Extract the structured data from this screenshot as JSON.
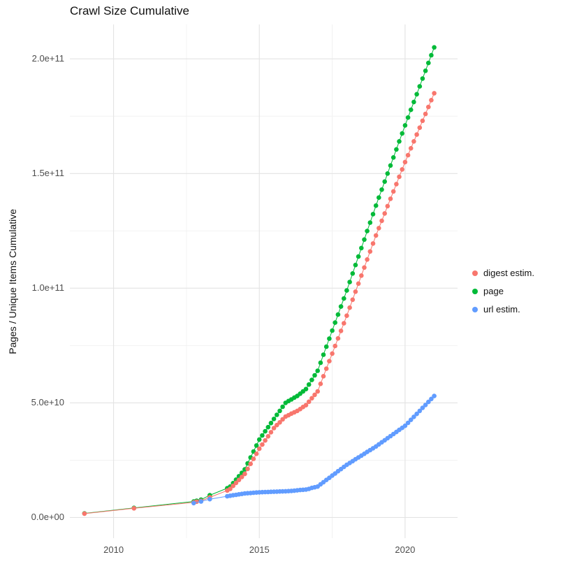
{
  "chart_data": {
    "type": "scatter",
    "title": "Crawl Size Cumulative",
    "xlabel": "",
    "ylabel": "Pages / Unique Items Cumulative",
    "grid": true,
    "legend_position": "right",
    "xlim": [
      2008.5,
      2021.8
    ],
    "ylim": [
      -9000000000.0,
      215000000000.0
    ],
    "x_ticks": [
      2010,
      2015,
      2020
    ],
    "x_tick_labels": [
      "2010",
      "2015",
      "2020"
    ],
    "x_minor_ticks": [
      2012.5,
      2017.5
    ],
    "y_ticks": [
      0,
      50000000000.0,
      100000000000.0,
      150000000000.0,
      200000000000.0
    ],
    "y_tick_labels": [
      "0.0e+00",
      "5.0e+10",
      "1.0e+11",
      "1.5e+11",
      "2.0e+11"
    ],
    "y_minor_ticks": [
      25000000000.0,
      75000000000.0,
      125000000000.0,
      175000000000.0
    ],
    "series": [
      {
        "name": "digest estim.",
        "color": "#F8766D",
        "points": [
          [
            2009,
            1700000000.0
          ],
          [
            2010.7,
            4000000000.0
          ],
          [
            2012.75,
            6600000000.0
          ],
          [
            2012.85,
            6900000000.0
          ],
          [
            2013,
            7300000000.0
          ],
          [
            2013.3,
            8800000000.0
          ],
          [
            2013.9,
            11800000000.0
          ],
          [
            2014,
            12500000000.0
          ],
          [
            2014.1,
            13800000000.0
          ],
          [
            2014.2,
            15100000000.0
          ],
          [
            2014.3,
            16400000000.0
          ],
          [
            2014.4,
            17700000000.0
          ],
          [
            2014.5,
            19000000000.0
          ],
          [
            2014.6,
            21200000000.0
          ],
          [
            2014.7,
            23400000000.0
          ],
          [
            2014.8,
            25600000000.0
          ],
          [
            2014.9,
            27800000000.0
          ],
          [
            2015,
            30000000000.0
          ],
          [
            2015.1,
            31800000000.0
          ],
          [
            2015.2,
            33600000000.0
          ],
          [
            2015.3,
            35400000000.0
          ],
          [
            2015.4,
            37200000000.0
          ],
          [
            2015.5,
            39000000000.0
          ],
          [
            2015.6,
            40300000000.0
          ],
          [
            2015.7,
            41500000000.0
          ],
          [
            2015.8,
            42800000000.0
          ],
          [
            2015.9,
            44000000000.0
          ],
          [
            2016,
            44600000000.0
          ],
          [
            2016.1,
            45300000000.0
          ],
          [
            2016.2,
            45900000000.0
          ],
          [
            2016.3,
            46500000000.0
          ],
          [
            2016.4,
            47300000000.0
          ],
          [
            2016.5,
            48200000000.0
          ],
          [
            2016.6,
            49000000000.0
          ],
          [
            2016.7,
            50500000000.0
          ],
          [
            2016.8,
            52000000000.0
          ],
          [
            2016.9,
            53500000000.0
          ],
          [
            2017,
            55000000000.0
          ],
          [
            2017.1,
            58300000000.0
          ],
          [
            2017.2,
            61600000000.0
          ],
          [
            2017.3,
            64900000000.0
          ],
          [
            2017.4,
            68200000000.0
          ],
          [
            2017.5,
            71500000000.0
          ],
          [
            2017.6,
            74800000000.0
          ],
          [
            2017.7,
            78100000000.0
          ],
          [
            2017.8,
            81400000000.0
          ],
          [
            2017.9,
            84700000000.0
          ],
          [
            2018,
            88000000000.0
          ],
          [
            2018.1,
            91500000000.0
          ],
          [
            2018.2,
            95000000000.0
          ],
          [
            2018.3,
            98500000000.0
          ],
          [
            2018.4,
            102000000000.0
          ],
          [
            2018.5,
            105500000000.0
          ],
          [
            2018.6,
            109000000000.0
          ],
          [
            2018.7,
            112500000000.0
          ],
          [
            2018.8,
            116000000000.0
          ],
          [
            2018.9,
            119500000000.0
          ],
          [
            2019,
            123000000000.0
          ],
          [
            2019.1,
            126200000000.0
          ],
          [
            2019.2,
            129400000000.0
          ],
          [
            2019.3,
            132600000000.0
          ],
          [
            2019.4,
            135800000000.0
          ],
          [
            2019.5,
            139000000000.0
          ],
          [
            2019.6,
            142200000000.0
          ],
          [
            2019.7,
            145400000000.0
          ],
          [
            2019.8,
            148600000000.0
          ],
          [
            2019.9,
            151800000000.0
          ],
          [
            2020,
            155000000000.0
          ],
          [
            2020.1,
            158000000000.0
          ],
          [
            2020.2,
            161000000000.0
          ],
          [
            2020.3,
            164000000000.0
          ],
          [
            2020.4,
            167000000000.0
          ],
          [
            2020.5,
            170000000000.0
          ],
          [
            2020.6,
            173000000000.0
          ],
          [
            2020.7,
            176000000000.0
          ],
          [
            2020.8,
            179000000000.0
          ],
          [
            2020.9,
            182000000000.0
          ],
          [
            2021,
            185000000000.0
          ]
        ]
      },
      {
        "name": "page",
        "color": "#00BA38",
        "points": [
          [
            2009,
            1800000000.0
          ],
          [
            2010.7,
            4200000000.0
          ],
          [
            2012.75,
            7000000000.0
          ],
          [
            2012.85,
            7300000000.0
          ],
          [
            2013,
            7800000000.0
          ],
          [
            2013.3,
            9700000000.0
          ],
          [
            2013.9,
            12800000000.0
          ],
          [
            2014,
            13500000000.0
          ],
          [
            2014.1,
            15000000000.0
          ],
          [
            2014.2,
            16500000000.0
          ],
          [
            2014.3,
            18000000000.0
          ],
          [
            2014.4,
            19500000000.0
          ],
          [
            2014.5,
            21000000000.0
          ],
          [
            2014.6,
            23600000000.0
          ],
          [
            2014.7,
            26200000000.0
          ],
          [
            2014.8,
            28800000000.0
          ],
          [
            2014.9,
            31400000000.0
          ],
          [
            2015,
            34000000000.0
          ],
          [
            2015.1,
            35800000000.0
          ],
          [
            2015.2,
            37600000000.0
          ],
          [
            2015.3,
            39400000000.0
          ],
          [
            2015.4,
            41200000000.0
          ],
          [
            2015.5,
            43000000000.0
          ],
          [
            2015.6,
            44800000000.0
          ],
          [
            2015.7,
            46500000000.0
          ],
          [
            2015.8,
            48300000000.0
          ],
          [
            2015.9,
            50000000000.0
          ],
          [
            2016,
            50800000000.0
          ],
          [
            2016.1,
            51500000000.0
          ],
          [
            2016.2,
            52300000000.0
          ],
          [
            2016.3,
            53000000000.0
          ],
          [
            2016.4,
            54000000000.0
          ],
          [
            2016.5,
            55000000000.0
          ],
          [
            2016.6,
            56000000000.0
          ],
          [
            2016.7,
            58000000000.0
          ],
          [
            2016.8,
            60000000000.0
          ],
          [
            2016.9,
            62000000000.0
          ],
          [
            2017,
            64000000000.0
          ],
          [
            2017.1,
            67500000000.0
          ],
          [
            2017.2,
            71000000000.0
          ],
          [
            2017.3,
            74500000000.0
          ],
          [
            2017.4,
            78000000000.0
          ],
          [
            2017.5,
            81500000000.0
          ],
          [
            2017.6,
            85000000000.0
          ],
          [
            2017.7,
            88500000000.0
          ],
          [
            2017.8,
            92000000000.0
          ],
          [
            2017.9,
            95500000000.0
          ],
          [
            2018,
            99000000000.0
          ],
          [
            2018.1,
            102700000000.0
          ],
          [
            2018.2,
            106400000000.0
          ],
          [
            2018.3,
            110100000000.0
          ],
          [
            2018.4,
            113800000000.0
          ],
          [
            2018.5,
            117500000000.0
          ],
          [
            2018.6,
            121200000000.0
          ],
          [
            2018.7,
            124900000000.0
          ],
          [
            2018.8,
            128600000000.0
          ],
          [
            2018.9,
            132300000000.0
          ],
          [
            2019,
            136000000000.0
          ],
          [
            2019.1,
            139500000000.0
          ],
          [
            2019.2,
            143000000000.0
          ],
          [
            2019.3,
            146500000000.0
          ],
          [
            2019.4,
            150000000000.0
          ],
          [
            2019.5,
            153500000000.0
          ],
          [
            2019.6,
            157000000000.0
          ],
          [
            2019.7,
            160500000000.0
          ],
          [
            2019.8,
            164000000000.0
          ],
          [
            2019.9,
            167500000000.0
          ],
          [
            2020,
            171000000000.0
          ],
          [
            2020.1,
            174400000000.0
          ],
          [
            2020.2,
            177800000000.0
          ],
          [
            2020.3,
            181200000000.0
          ],
          [
            2020.4,
            184600000000.0
          ],
          [
            2020.5,
            188000000000.0
          ],
          [
            2020.6,
            191400000000.0
          ],
          [
            2020.7,
            194800000000.0
          ],
          [
            2020.8,
            198200000000.0
          ],
          [
            2020.9,
            201600000000.0
          ],
          [
            2021,
            205000000000.0
          ]
        ]
      },
      {
        "name": "url estim.",
        "color": "#619CFF",
        "points": [
          [
            2012.75,
            6300000000.0
          ],
          [
            2013,
            7000000000.0
          ],
          [
            2013.3,
            8000000000.0
          ],
          [
            2013.9,
            9300000000.0
          ],
          [
            2014,
            9500000000.0
          ],
          [
            2014.1,
            9700000000.0
          ],
          [
            2014.2,
            9900000000.0
          ],
          [
            2014.3,
            10100000000.0
          ],
          [
            2014.4,
            10300000000.0
          ],
          [
            2014.5,
            10500000000.0
          ],
          [
            2014.6,
            10600000000.0
          ],
          [
            2014.7,
            10700000000.0
          ],
          [
            2014.8,
            10800000000.0
          ],
          [
            2014.9,
            10900000000.0
          ],
          [
            2015,
            11000000000.0
          ],
          [
            2015.1,
            11050000000.0
          ],
          [
            2015.2,
            11100000000.0
          ],
          [
            2015.3,
            11150000000.0
          ],
          [
            2015.4,
            11200000000.0
          ],
          [
            2015.5,
            11250000000.0
          ],
          [
            2015.6,
            11300000000.0
          ],
          [
            2015.7,
            11350000000.0
          ],
          [
            2015.8,
            11400000000.0
          ],
          [
            2015.9,
            11450000000.0
          ],
          [
            2016,
            11500000000.0
          ],
          [
            2016.1,
            11600000000.0
          ],
          [
            2016.2,
            11700000000.0
          ],
          [
            2016.3,
            11850000000.0
          ],
          [
            2016.4,
            12000000000.0
          ],
          [
            2016.5,
            12100000000.0
          ],
          [
            2016.6,
            12200000000.0
          ],
          [
            2016.7,
            12500000000.0
          ],
          [
            2016.8,
            12900000000.0
          ],
          [
            2016.9,
            13200000000.0
          ],
          [
            2017,
            13500000000.0
          ],
          [
            2017.1,
            14500000000.0
          ],
          [
            2017.2,
            15400000000.0
          ],
          [
            2017.3,
            16400000000.0
          ],
          [
            2017.4,
            17300000000.0
          ],
          [
            2017.5,
            18300000000.0
          ],
          [
            2017.6,
            19200000000.0
          ],
          [
            2017.7,
            20200000000.0
          ],
          [
            2017.8,
            21100000000.0
          ],
          [
            2017.9,
            22100000000.0
          ],
          [
            2018,
            23000000000.0
          ],
          [
            2018.1,
            23800000000.0
          ],
          [
            2018.2,
            24600000000.0
          ],
          [
            2018.3,
            25400000000.0
          ],
          [
            2018.4,
            26200000000.0
          ],
          [
            2018.5,
            27000000000.0
          ],
          [
            2018.6,
            27800000000.0
          ],
          [
            2018.7,
            28600000000.0
          ],
          [
            2018.8,
            29400000000.0
          ],
          [
            2018.9,
            30200000000.0
          ],
          [
            2019,
            31000000000.0
          ],
          [
            2019.1,
            31900000000.0
          ],
          [
            2019.2,
            32800000000.0
          ],
          [
            2019.3,
            33700000000.0
          ],
          [
            2019.4,
            34600000000.0
          ],
          [
            2019.5,
            35500000000.0
          ],
          [
            2019.6,
            36400000000.0
          ],
          [
            2019.7,
            37300000000.0
          ],
          [
            2019.8,
            38200000000.0
          ],
          [
            2019.9,
            39100000000.0
          ],
          [
            2020,
            40000000000.0
          ],
          [
            2020.1,
            41300000000.0
          ],
          [
            2020.2,
            42600000000.0
          ],
          [
            2020.3,
            43900000000.0
          ],
          [
            2020.4,
            45200000000.0
          ],
          [
            2020.5,
            46500000000.0
          ],
          [
            2020.6,
            47800000000.0
          ],
          [
            2020.7,
            49100000000.0
          ],
          [
            2020.8,
            50400000000.0
          ],
          [
            2020.9,
            51700000000.0
          ],
          [
            2021,
            53000000000.0
          ]
        ]
      }
    ]
  }
}
